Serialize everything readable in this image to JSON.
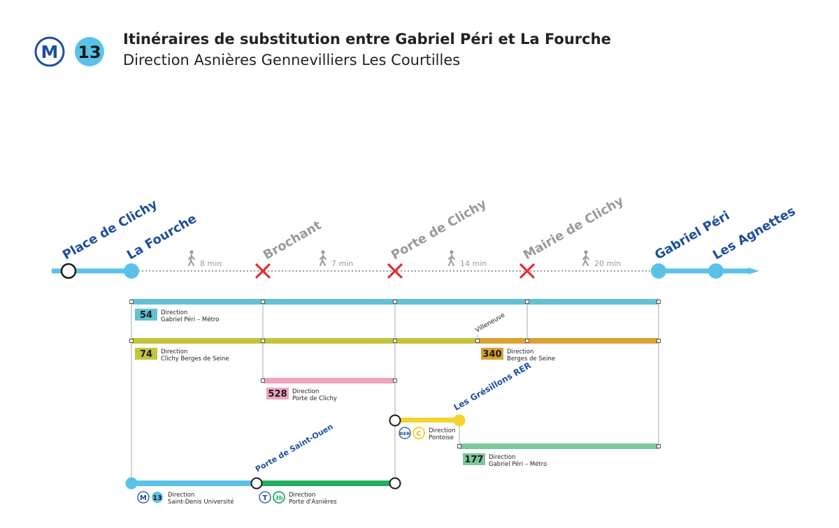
{
  "header": {
    "metro_symbol": "M",
    "line_number": "13",
    "title": "Itinéraires de substitution entre Gabriel Péri et La Fourche",
    "subtitle": "Direction Asnières Gennevilliers Les Courtilles"
  },
  "stations": {
    "place_de_clichy": "Place de Clichy",
    "la_fourche": "La Fourche",
    "brochant": "Brochant",
    "porte_de_clichy": "Porte de Clichy",
    "mairie_de_clichy": "Mairie de Clichy",
    "gabriel_peri": "Gabriel Péri",
    "les_agnettes": "Les Agnettes"
  },
  "walks": {
    "w1": "8 min",
    "w2": "7 min",
    "w3": "14 min",
    "w4": "20 min"
  },
  "routes": {
    "bus54": {
      "number": "54",
      "line1": "Direction",
      "line2": "Gabriel Péri – Métro"
    },
    "bus74": {
      "number": "74",
      "line1": "Direction",
      "line2": "Clichy Berges de Seine"
    },
    "bus340": {
      "number": "340",
      "line1": "Direction",
      "line2": "Berges de Seine",
      "stop": "Villeneuve"
    },
    "bus528": {
      "number": "528",
      "line1": "Direction",
      "line2": "Porte de Clichy"
    },
    "rerc": {
      "stop": "Les Grésillons RER",
      "rer_symbol": "RER",
      "line_symbol": "C",
      "line1": "Direction",
      "line2": "Pontoise"
    },
    "bus177": {
      "number": "177",
      "line1": "Direction",
      "line2": "Gabriel Péri – Métro"
    },
    "m13": {
      "metro_symbol": "M",
      "line_number": "13",
      "line1": "Direction",
      "line2": "Saint-Denis Université"
    },
    "t3b": {
      "stop": "Porte de Saint-Ouen",
      "tram_symbol": "T",
      "line_number": "3b",
      "line1": "Direction",
      "line2": "Porte d'Asnières"
    }
  },
  "colors": {
    "line13": "#5bc2e7",
    "navy": "#1d4f9c",
    "bus54": "#62c2d2",
    "bus74": "#c2c43a",
    "bus340": "#d9a233",
    "bus528": "#f0a4c2",
    "rerc": "#f5d32c",
    "bus177": "#7cc79b",
    "tram3b": "#22ad62",
    "closed": "#e02f2f",
    "grey": "#9a9a9a"
  }
}
